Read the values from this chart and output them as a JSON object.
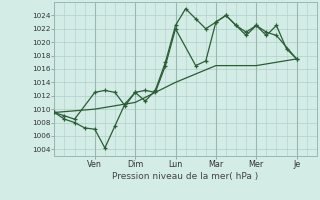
{
  "bg_color": "#d4ece6",
  "grid_color": "#b0cec8",
  "line_color": "#2a5e35",
  "ylim": [
    1003,
    1026
  ],
  "yticks": [
    1004,
    1006,
    1008,
    1010,
    1012,
    1014,
    1016,
    1018,
    1020,
    1022,
    1024
  ],
  "xlabel": "Pression niveau de la mer( hPa )",
  "day_labels": [
    "Ven",
    "Dim",
    "Lun",
    "Mar",
    "Mer",
    "Je"
  ],
  "day_positions": [
    2.0,
    4.0,
    6.0,
    8.0,
    10.0,
    12.0
  ],
  "xlim": [
    0,
    13
  ],
  "line1_x": [
    0,
    0.5,
    1,
    1.5,
    2,
    2.5,
    3,
    3.5,
    4,
    4.5,
    5,
    5.5,
    6,
    6.5,
    7,
    7.5,
    8,
    8.5,
    9,
    9.5,
    10,
    10.5,
    11,
    11.5,
    12
  ],
  "line1_y": [
    1009.5,
    1008.5,
    1008,
    1007.2,
    1007.0,
    1004.2,
    1007.5,
    1010.8,
    1012.5,
    1011.2,
    1012.8,
    1017.0,
    1022.5,
    1025.0,
    1023.5,
    1022.0,
    1023.0,
    1024.0,
    1022.5,
    1021.0,
    1022.5,
    1021.0,
    1022.5,
    1019.0,
    1017.5
  ],
  "line2_x": [
    0,
    0.5,
    1,
    2,
    2.5,
    3,
    3.5,
    4,
    4.5,
    5,
    5.5,
    6,
    7,
    7.5,
    8,
    8.5,
    9,
    9.5,
    10,
    10.5,
    11,
    12
  ],
  "line2_y": [
    1009.5,
    1009.0,
    1008.5,
    1012.5,
    1012.8,
    1012.5,
    1010.5,
    1012.5,
    1012.8,
    1012.5,
    1016.5,
    1022.0,
    1016.5,
    1017.2,
    1023.0,
    1024.0,
    1022.5,
    1021.5,
    1022.5,
    1021.5,
    1021.0,
    1017.5
  ],
  "line3_x": [
    0,
    2,
    4,
    6,
    8,
    10,
    12
  ],
  "line3_y": [
    1009.5,
    1010.0,
    1011.0,
    1014.0,
    1016.5,
    1016.5,
    1017.5
  ]
}
